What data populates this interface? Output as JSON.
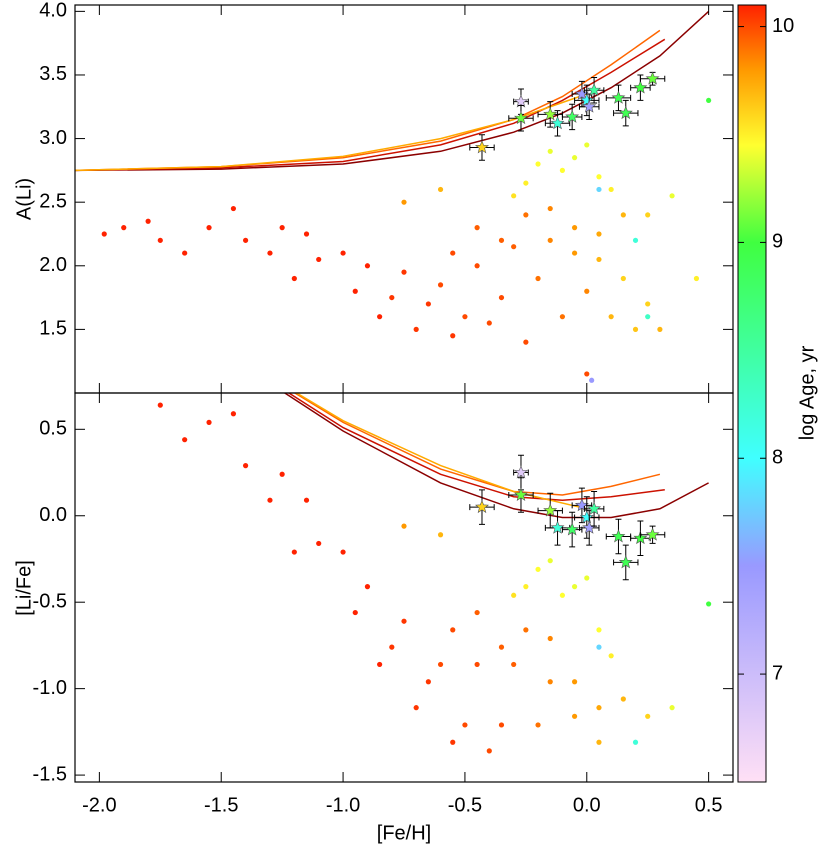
{
  "chart_data": [
    {
      "type": "scatter",
      "y_label": "A(Li)",
      "xlim": [
        -2.1,
        0.6
      ],
      "ylim": [
        1.0,
        4.05
      ],
      "xticks": [
        {
          "value": -2.0,
          "label": "-2.0"
        },
        {
          "value": -1.5,
          "label": "-1.5"
        },
        {
          "value": -1.0,
          "label": "-1.0"
        },
        {
          "value": -0.5,
          "label": "-0.5"
        },
        {
          "value": 0.0,
          "label": "0.0"
        },
        {
          "value": 0.5,
          "label": "0.5"
        }
      ],
      "yticks": [
        1.5,
        {
          "value": 2.0,
          "label": "2.0"
        },
        2.5,
        {
          "value": 3.0,
          "label": "3.0"
        },
        3.5,
        {
          "value": 4.0,
          "label": "4.0"
        }
      ],
      "dots": {
        "x": [
          -1.98,
          -1.9,
          -1.8,
          -1.75,
          -1.65,
          -1.55,
          -1.45,
          -1.4,
          -1.3,
          -1.25,
          -1.2,
          -1.15,
          -1.1,
          -1.0,
          -0.95,
          -0.9,
          -0.85,
          -0.8,
          -0.75,
          -0.7,
          -0.65,
          -0.6,
          -0.55,
          -0.5,
          -0.45,
          -0.4,
          -0.35,
          -0.3,
          -0.25,
          -0.2,
          -0.15,
          -0.1,
          -0.05,
          0.0,
          0.05,
          0.1,
          0.15,
          0.2,
          0.25,
          0.3,
          -0.55,
          -0.45,
          -0.35,
          -0.25,
          -0.15,
          -0.05,
          0.05,
          0.15,
          -0.2,
          -0.15,
          -0.1,
          -0.05,
          0.0,
          0.05,
          -0.25,
          0.1,
          -0.3,
          0.45,
          0.5,
          0.35,
          0.25,
          0.0,
          0.02,
          0.25,
          0.2,
          0.05,
          -0.6,
          -0.75
        ],
        "y": [
          2.25,
          2.3,
          2.35,
          2.2,
          2.1,
          2.3,
          2.45,
          2.2,
          2.1,
          2.3,
          1.9,
          2.25,
          2.05,
          2.1,
          1.8,
          2.0,
          1.6,
          1.75,
          1.95,
          1.5,
          1.7,
          1.85,
          1.45,
          1.6,
          2.0,
          1.55,
          1.75,
          2.15,
          1.4,
          1.9,
          2.2,
          1.6,
          2.1,
          1.8,
          2.05,
          1.6,
          1.9,
          1.5,
          1.7,
          1.5,
          2.1,
          2.3,
          2.2,
          2.4,
          2.45,
          2.3,
          2.25,
          2.4,
          2.8,
          2.9,
          2.75,
          2.85,
          2.95,
          2.7,
          2.65,
          2.6,
          2.55,
          1.9,
          3.3,
          2.55,
          2.4,
          1.15,
          1.1,
          1.6,
          2.2,
          2.6,
          2.6,
          2.5
        ],
        "age": [
          10.1,
          10.1,
          10.1,
          10.1,
          10.1,
          10.1,
          10.1,
          10.1,
          10.1,
          10.1,
          10.1,
          10.1,
          10.1,
          10.1,
          10.1,
          10.1,
          10.1,
          10.05,
          10.05,
          10.05,
          10.05,
          10.0,
          10.05,
          10.0,
          10.0,
          10.0,
          10.0,
          9.95,
          10.0,
          9.9,
          9.85,
          9.9,
          9.8,
          9.85,
          9.7,
          9.7,
          9.6,
          9.65,
          9.6,
          9.7,
          10.0,
          9.95,
          9.95,
          9.9,
          9.85,
          9.8,
          9.75,
          9.7,
          9.45,
          9.4,
          9.45,
          9.4,
          9.4,
          9.45,
          9.5,
          9.5,
          9.55,
          9.5,
          9.0,
          9.4,
          9.6,
          10.0,
          7.5,
          8.3,
          8.2,
          7.8,
          9.7,
          9.8
        ]
      },
      "stars": {
        "x": [
          -0.43,
          -0.27,
          -0.27,
          -0.15,
          -0.12,
          -0.06,
          -0.02,
          0.0,
          0.01,
          0.03,
          0.13,
          0.16,
          0.22,
          0.27
        ],
        "y": [
          2.93,
          3.29,
          3.16,
          3.19,
          3.12,
          3.17,
          3.35,
          3.3,
          3.25,
          3.38,
          3.32,
          3.2,
          3.4,
          3.47
        ],
        "xerr": [
          0.05,
          0.03,
          0.05,
          0.05,
          0.05,
          0.04,
          0.04,
          0.05,
          0.04,
          0.04,
          0.05,
          0.05,
          0.04,
          0.05
        ],
        "yerr": [
          0.1,
          0.1,
          0.1,
          0.1,
          0.1,
          0.1,
          0.1,
          0.12,
          0.1,
          0.1,
          0.1,
          0.1,
          0.1,
          0.05
        ],
        "age": [
          9.6,
          6.8,
          9.1,
          9.2,
          8.2,
          8.8,
          7.5,
          8.0,
          7.4,
          8.5,
          8.9,
          8.9,
          9.0,
          9.1
        ]
      },
      "models": [
        {
          "color": "#8b0000",
          "x": [
            -2.1,
            -1.5,
            -1.0,
            -0.6,
            -0.3,
            -0.1,
            0.1,
            0.3,
            0.5
          ],
          "y": [
            2.75,
            2.76,
            2.8,
            2.9,
            3.05,
            3.2,
            3.4,
            3.65,
            4.0
          ]
        },
        {
          "color": "#cc1100",
          "x": [
            -2.1,
            -1.5,
            -1.0,
            -0.6,
            -0.3,
            -0.1,
            0.1,
            0.32
          ],
          "y": [
            2.75,
            2.77,
            2.82,
            2.95,
            3.12,
            3.3,
            3.52,
            3.78
          ]
        },
        {
          "color": "#ff6600",
          "x": [
            -2.1,
            -1.5,
            -1.0,
            -0.6,
            -0.3,
            -0.1,
            0.1,
            0.3
          ],
          "y": [
            2.75,
            2.78,
            2.85,
            2.98,
            3.15,
            3.33,
            3.58,
            3.85
          ]
        },
        {
          "color": "#ffaa00",
          "x": [
            -2.1,
            -1.5,
            -1.0,
            -0.6,
            -0.3,
            0.0
          ],
          "y": [
            2.75,
            2.78,
            2.86,
            3.0,
            3.15,
            3.35
          ]
        }
      ]
    },
    {
      "type": "scatter",
      "y_label": "[Li/Fe]",
      "x_label": "[Fe/H]",
      "xlim": [
        -2.1,
        0.6
      ],
      "ylim": [
        -1.54,
        0.71
      ],
      "xticks": [
        {
          "value": -2.0,
          "label": "-2.0"
        },
        {
          "value": -1.5,
          "label": "-1.5"
        },
        {
          "value": -1.0,
          "label": "-1.0"
        },
        {
          "value": -0.5,
          "label": "-0.5"
        },
        {
          "value": 0.0,
          "label": "0.0"
        },
        {
          "value": 0.5,
          "label": "0.5"
        }
      ],
      "yticks": [
        -1.5,
        {
          "value": -1.0,
          "label": "-1.0"
        },
        -0.5,
        {
          "value": 0.0,
          "label": "0.0"
        },
        0.5
      ],
      "dots": {
        "x": [
          -1.75,
          -1.65,
          -1.55,
          -1.45,
          -1.4,
          -1.3,
          -1.25,
          -1.2,
          -1.15,
          -1.1,
          -1.0,
          -0.95,
          -0.9,
          -0.85,
          -0.8,
          -0.75,
          -0.7,
          -0.65,
          -0.6,
          -0.55,
          -0.5,
          -0.45,
          -0.4,
          -0.35,
          -0.3,
          -0.2,
          -0.15,
          -0.05,
          0.05,
          -0.55,
          -0.45,
          -0.35,
          -0.25,
          -0.15,
          -0.05,
          0.05,
          0.15,
          -0.2,
          -0.15,
          -0.1,
          -0.05,
          0.0,
          0.05,
          -0.25,
          0.1,
          -0.3,
          0.5,
          0.35,
          0.25,
          0.2,
          0.05,
          -0.6,
          -0.75
        ],
        "y": [
          0.64,
          0.44,
          0.54,
          0.59,
          0.29,
          0.09,
          0.24,
          -0.21,
          0.09,
          -0.16,
          -0.21,
          -0.56,
          -0.41,
          -0.86,
          -0.76,
          -0.61,
          -1.11,
          -0.96,
          -0.86,
          -1.31,
          -1.21,
          -0.86,
          -1.36,
          -1.21,
          -0.86,
          -1.21,
          -0.96,
          -1.16,
          -1.31,
          -0.66,
          -0.56,
          -0.76,
          -0.66,
          -0.71,
          -0.96,
          -1.11,
          -1.06,
          -0.31,
          -0.26,
          -0.46,
          -0.41,
          -0.36,
          -0.66,
          -0.41,
          -0.81,
          -0.46,
          -0.51,
          -1.11,
          -1.16,
          -1.31,
          -0.76,
          -0.11,
          -0.06
        ],
        "age": [
          10.1,
          10.1,
          10.1,
          10.1,
          10.1,
          10.1,
          10.1,
          10.1,
          10.1,
          10.1,
          10.1,
          10.1,
          10.1,
          10.1,
          10.05,
          10.05,
          10.05,
          10.05,
          10.0,
          10.05,
          10.0,
          10.0,
          10.0,
          10.0,
          9.95,
          9.9,
          9.85,
          9.8,
          9.7,
          10.0,
          9.95,
          9.95,
          9.9,
          9.85,
          9.8,
          9.75,
          9.7,
          9.45,
          9.4,
          9.45,
          9.4,
          9.4,
          9.45,
          9.5,
          9.5,
          9.55,
          9.0,
          9.4,
          9.6,
          8.2,
          7.8,
          9.7,
          9.8
        ]
      },
      "stars": {
        "x": [
          -0.43,
          -0.27,
          -0.27,
          -0.15,
          -0.12,
          -0.06,
          -0.02,
          0.0,
          0.01,
          0.03,
          0.13,
          0.16,
          0.22,
          0.27
        ],
        "y": [
          0.05,
          0.25,
          0.12,
          0.03,
          -0.07,
          -0.08,
          0.06,
          -0.01,
          -0.07,
          0.04,
          -0.12,
          -0.27,
          -0.13,
          -0.11
        ],
        "xerr": [
          0.05,
          0.03,
          0.05,
          0.05,
          0.05,
          0.04,
          0.04,
          0.05,
          0.04,
          0.04,
          0.05,
          0.05,
          0.04,
          0.05
        ],
        "yerr": [
          0.1,
          0.1,
          0.1,
          0.1,
          0.1,
          0.1,
          0.1,
          0.12,
          0.1,
          0.1,
          0.1,
          0.1,
          0.1,
          0.05
        ],
        "age": [
          9.6,
          6.8,
          9.1,
          9.2,
          8.2,
          8.8,
          7.5,
          8.0,
          7.4,
          8.5,
          8.9,
          8.9,
          9.0,
          9.1
        ]
      },
      "models": [
        {
          "color": "#8b0000",
          "x": [
            -1.5,
            -1.0,
            -0.6,
            -0.3,
            -0.1,
            0.1,
            0.3,
            0.5
          ],
          "y": [
            0.95,
            0.49,
            0.19,
            0.04,
            -0.01,
            -0.01,
            0.04,
            0.19
          ]
        },
        {
          "color": "#cc1100",
          "x": [
            -1.5,
            -1.0,
            -0.6,
            -0.3,
            -0.1,
            0.1,
            0.32
          ],
          "y": [
            0.96,
            0.51,
            0.24,
            0.11,
            0.09,
            0.11,
            0.15
          ]
        },
        {
          "color": "#ff6600",
          "x": [
            -1.5,
            -1.0,
            -0.6,
            -0.3,
            -0.1,
            0.1,
            0.3
          ],
          "y": [
            0.97,
            0.54,
            0.27,
            0.14,
            0.12,
            0.17,
            0.24
          ]
        },
        {
          "color": "#ffaa00",
          "x": [
            -1.5,
            -1.0,
            -0.6,
            -0.3,
            0.0
          ],
          "y": [
            0.97,
            0.55,
            0.29,
            0.14,
            0.04
          ]
        }
      ]
    }
  ],
  "colorbar": {
    "label": "log Age, yr",
    "lim": [
      6.5,
      10.1
    ],
    "ticks": [
      7,
      8,
      9,
      10
    ],
    "colormap": [
      [
        6.5,
        "#ffe0f5"
      ],
      [
        7.5,
        "#9999ff"
      ],
      [
        8.0,
        "#40ffff"
      ],
      [
        9.0,
        "#40ff40"
      ],
      [
        9.45,
        "#ffff30"
      ],
      [
        9.8,
        "#ff9900"
      ],
      [
        10.1,
        "#ff2200"
      ]
    ]
  }
}
